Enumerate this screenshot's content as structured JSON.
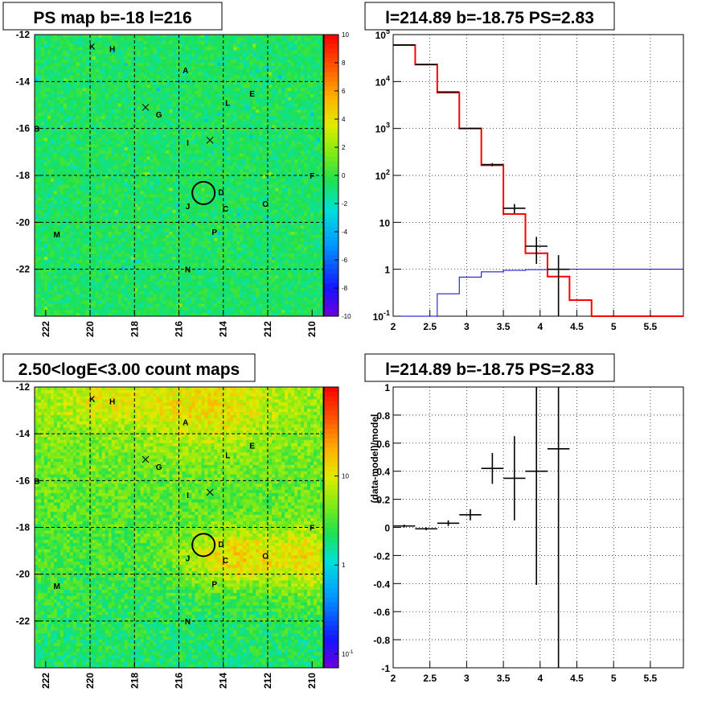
{
  "chart_data": [
    {
      "type": "heatmap",
      "title": "PS map b=-18 l=216",
      "xlim": [
        222.5,
        209.5
      ],
      "ylim": [
        -24,
        -12
      ],
      "xticks": [
        "222",
        "220",
        "218",
        "216",
        "214",
        "212",
        "210"
      ],
      "yticks": [
        "-12",
        "-14",
        "-16",
        "-18",
        "-20",
        "-22"
      ],
      "colorbar": {
        "range": [
          -10,
          10
        ],
        "ticks": [
          "10",
          "8",
          "6",
          "4",
          "2",
          "0",
          "-2",
          "-4",
          "-6",
          "-8",
          "-10"
        ]
      },
      "sources": [
        {
          "label": "K",
          "l": 219.9,
          "b": -12.5
        },
        {
          "label": "H",
          "l": 219.0,
          "b": -12.6
        },
        {
          "label": "A",
          "l": 215.7,
          "b": -13.5
        },
        {
          "label": "E",
          "l": 212.7,
          "b": -14.5
        },
        {
          "label": "L",
          "l": 213.8,
          "b": -14.9
        },
        {
          "label": "G",
          "l": 216.9,
          "b": -15.4
        },
        {
          "label": "B",
          "l": 222.4,
          "b": -16.0
        },
        {
          "label": "I",
          "l": 215.6,
          "b": -16.6
        },
        {
          "label": "F",
          "l": 210.0,
          "b": -18.0
        },
        {
          "label": "D",
          "l": 214.1,
          "b": -18.7
        },
        {
          "label": "J",
          "l": 215.6,
          "b": -19.3
        },
        {
          "label": "O",
          "l": 212.1,
          "b": -19.2
        },
        {
          "label": "C",
          "l": 213.9,
          "b": -19.4
        },
        {
          "label": "M",
          "l": 221.5,
          "b": -20.5
        },
        {
          "label": "P",
          "l": 214.4,
          "b": -20.4
        },
        {
          "label": "N",
          "l": 215.6,
          "b": -22.0
        }
      ],
      "crosses": [
        {
          "l": 217.5,
          "b": -15.1
        },
        {
          "l": 214.6,
          "b": -16.5
        }
      ],
      "circle": {
        "l": 214.89,
        "b": -18.75
      }
    },
    {
      "type": "line",
      "title": "l=214.89 b=-18.75 PS=2.83",
      "xlim": [
        2,
        5.95
      ],
      "ylim": [
        0.1,
        100000
      ],
      "yscale": "log",
      "grid": true,
      "xticks": [
        "2",
        "2.5",
        "3",
        "3.5",
        "4",
        "4.5",
        "5",
        "5.5"
      ],
      "yticks": [
        "10^5",
        "10^4",
        "10^3",
        "10^2",
        "10",
        "1",
        "10^-1"
      ],
      "model_total": {
        "color": "#ff0000",
        "edges": [
          2.0,
          2.3,
          2.6,
          2.9,
          3.2,
          3.5,
          3.8,
          4.1,
          4.4,
          4.7,
          5.0,
          5.3,
          5.6,
          5.95
        ],
        "values": [
          60000,
          23000,
          5800,
          1000,
          165,
          15,
          2.2,
          0.7,
          0.22,
          0.1,
          0.1,
          0.1,
          0.1
        ]
      },
      "model_ps": {
        "color": "#0000cc",
        "edges": [
          2.0,
          2.3,
          2.6,
          2.9,
          3.2,
          3.5,
          3.8,
          4.1,
          4.4,
          4.7,
          5.0,
          5.3,
          5.6,
          5.95
        ],
        "values": [
          0.01,
          0.01,
          0.3,
          0.68,
          0.88,
          0.95,
          0.98,
          1.0,
          1.0,
          1.0,
          1.0,
          1.0,
          1.0
        ]
      },
      "data": [
        {
          "x": 2.15,
          "y": 60000,
          "xerr": 0.15,
          "ylo": 59500,
          "yhi": 60500
        },
        {
          "x": 2.45,
          "y": 23000,
          "xerr": 0.15,
          "ylo": 22850,
          "yhi": 23150
        },
        {
          "x": 2.75,
          "y": 6000,
          "xerr": 0.15,
          "ylo": 5920,
          "yhi": 6080
        },
        {
          "x": 3.05,
          "y": 1000,
          "xerr": 0.15,
          "ylo": 970,
          "yhi": 1030
        },
        {
          "x": 3.35,
          "y": 170,
          "xerr": 0.15,
          "ylo": 157,
          "yhi": 183
        },
        {
          "x": 3.65,
          "y": 20,
          "xerr": 0.15,
          "ylo": 15.5,
          "yhi": 24.5
        },
        {
          "x": 3.95,
          "y": 3.1,
          "xerr": 0.15,
          "ylo": 1.3,
          "yhi": 4.9
        },
        {
          "x": 4.25,
          "y": 1.0,
          "xerr": 0.15,
          "ylo": 0.1,
          "yhi": 2.0
        }
      ]
    },
    {
      "type": "heatmap",
      "title": "2.50<logE<3.00 count maps",
      "xlim": [
        222.5,
        209.5
      ],
      "ylim": [
        -24,
        -12
      ],
      "xticks": [
        "222",
        "220",
        "218",
        "216",
        "214",
        "212",
        "210"
      ],
      "yticks": [
        "-12",
        "-14",
        "-16",
        "-18",
        "-20",
        "-22"
      ],
      "colorbar": {
        "scale": "log",
        "range": [
          0.07,
          100
        ],
        "ticks": [
          "10",
          "1",
          "10^-1"
        ]
      }
    },
    {
      "type": "scatter",
      "title": "l=214.89 b=-18.75 PS=2.83",
      "ylabel": "(data-model)/model",
      "xlim": [
        2,
        5.95
      ],
      "ylim": [
        -1,
        1
      ],
      "grid": true,
      "xticks": [
        "2",
        "2.5",
        "3",
        "3.5",
        "4",
        "4.5",
        "5",
        "5.5"
      ],
      "yticks": [
        "1",
        "0.8",
        "0.6",
        "0.4",
        "0.2",
        "0",
        "-0.2",
        "-0.4",
        "-0.6",
        "-0.8",
        "-1"
      ],
      "points": [
        {
          "x": 2.15,
          "y": 0.01,
          "xerr": 0.15,
          "yerr": 0.01
        },
        {
          "x": 2.45,
          "y": -0.01,
          "xerr": 0.15,
          "yerr": 0.01
        },
        {
          "x": 2.75,
          "y": 0.03,
          "xerr": 0.15,
          "yerr": 0.02
        },
        {
          "x": 3.05,
          "y": 0.09,
          "xerr": 0.15,
          "yerr": 0.04
        },
        {
          "x": 3.35,
          "y": 0.42,
          "xerr": 0.15,
          "yerr": 0.11
        },
        {
          "x": 3.65,
          "y": 0.35,
          "xerr": 0.15,
          "yerr": 0.3
        },
        {
          "x": 3.95,
          "y": 0.4,
          "xerr": 0.15,
          "yerr": 0.81
        },
        {
          "x": 4.25,
          "y": 0.56,
          "xerr": 0.15,
          "yerr": 1.6
        }
      ]
    }
  ]
}
